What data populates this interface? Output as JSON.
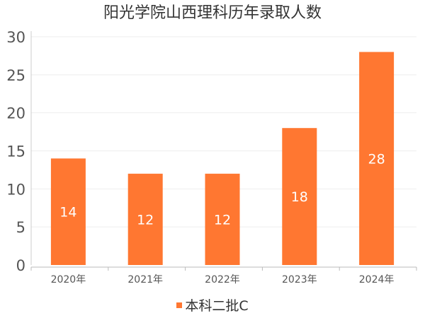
{
  "chart_data": {
    "type": "bar",
    "title": "阳光学院山西理科历年录取人数",
    "categories": [
      "2020年",
      "2021年",
      "2022年",
      "2023年",
      "2024年"
    ],
    "series": [
      {
        "name": "本科二批C",
        "values": [
          14,
          12,
          12,
          18,
          28
        ],
        "color": "#ff7731"
      }
    ],
    "ylim": [
      0,
      30
    ],
    "yticks": [
      0,
      5,
      10,
      15,
      20,
      25,
      30
    ],
    "grid": true,
    "data_labels": true,
    "legend_position": "bottom-center"
  }
}
